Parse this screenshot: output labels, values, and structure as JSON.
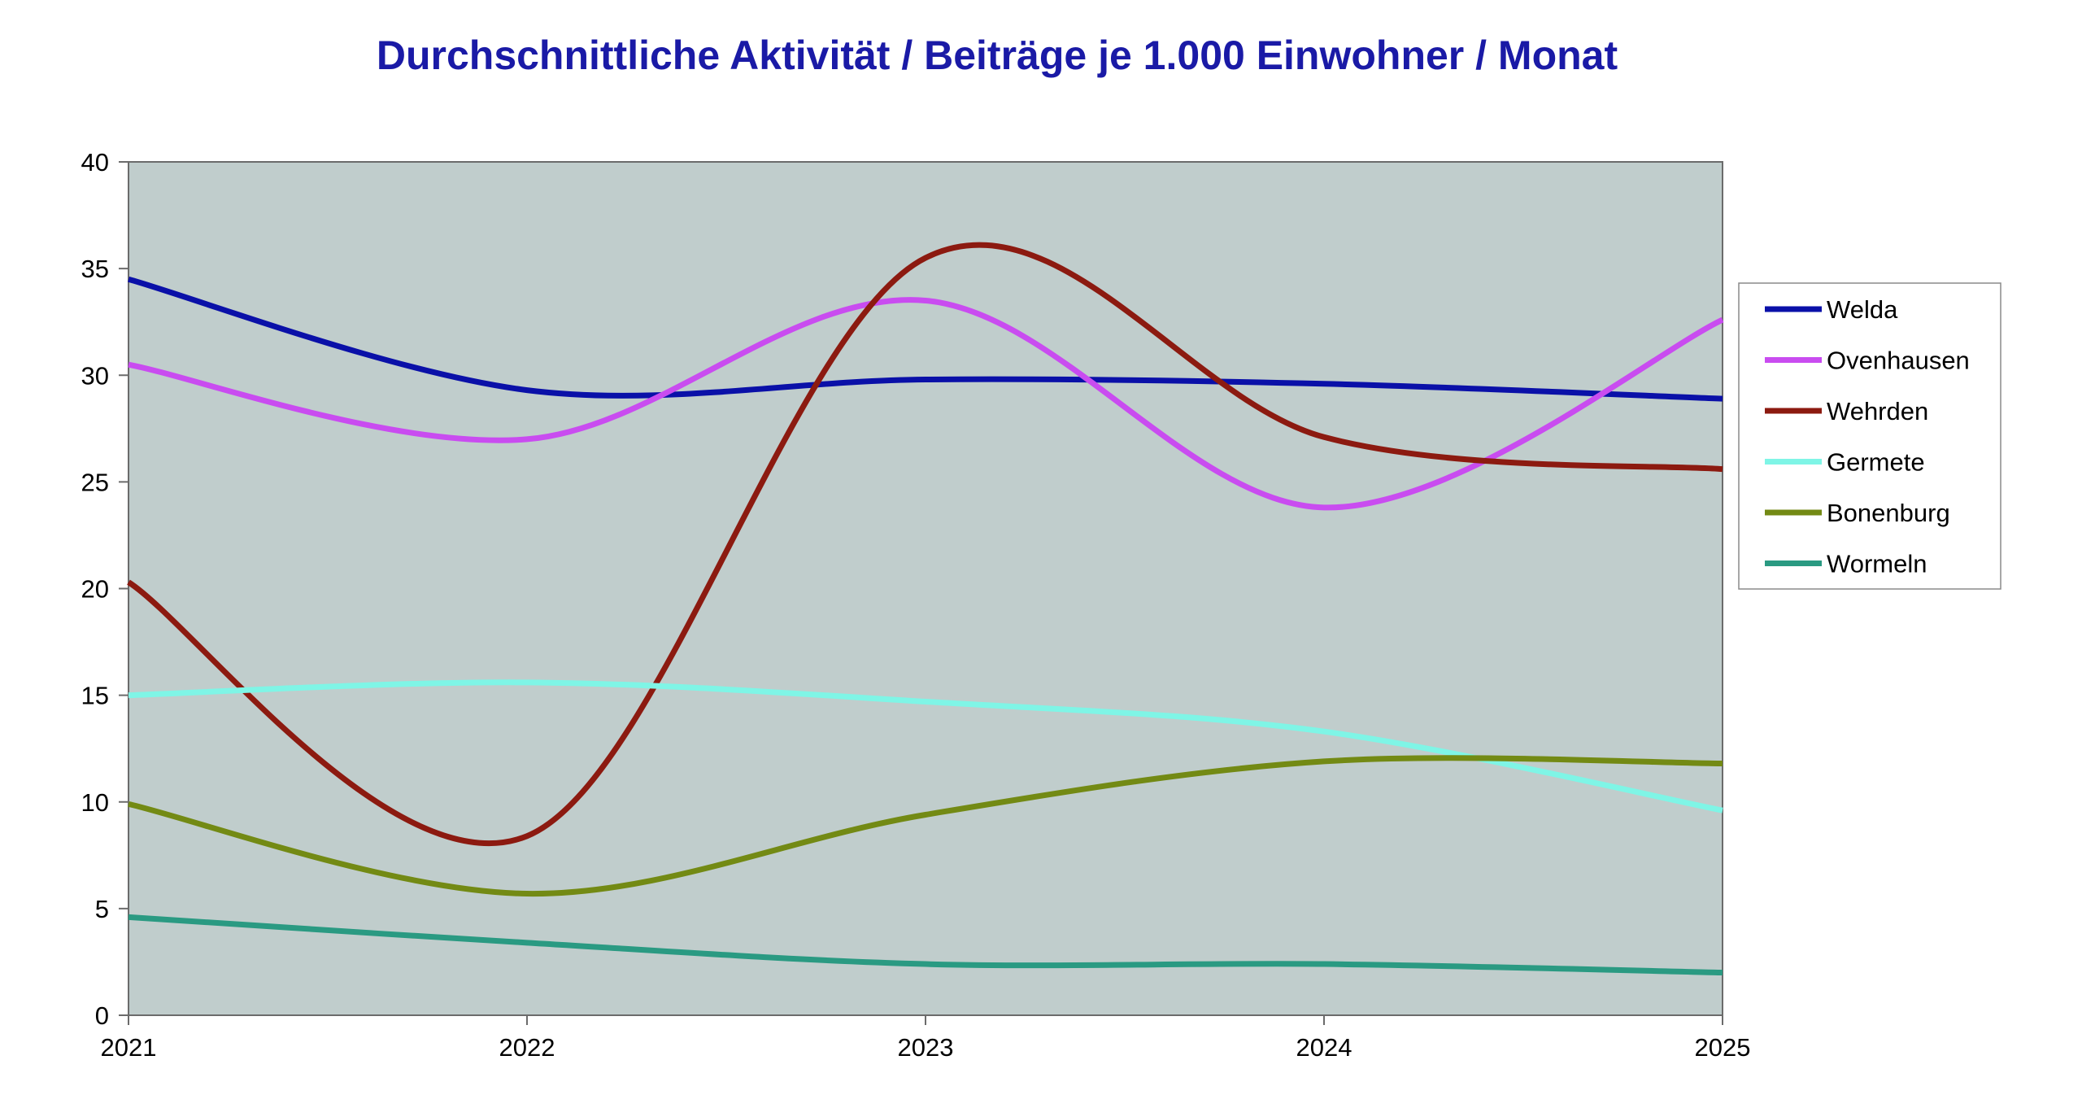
{
  "chart_data": {
    "type": "line",
    "title": "Durchschnittliche Aktivität / Beiträge je 1.000 Einwohner / Monat",
    "xlabel": "",
    "ylabel": "",
    "categories": [
      "2021",
      "2022",
      "2023",
      "2024",
      "2025"
    ],
    "ylim": [
      0,
      40
    ],
    "yticks": [
      0,
      5,
      10,
      15,
      20,
      25,
      30,
      35,
      40
    ],
    "grid": false,
    "legend_position": "right",
    "series": [
      {
        "name": "Welda",
        "color": "#0a10a8",
        "values": [
          34.5,
          29.3,
          29.8,
          29.6,
          28.9
        ]
      },
      {
        "name": "Ovenhausen",
        "color": "#c94cf0",
        "values": [
          30.5,
          27.0,
          33.5,
          23.8,
          32.6
        ]
      },
      {
        "name": "Wehrden",
        "color": "#8c1a10",
        "values": [
          20.3,
          8.4,
          35.5,
          27.1,
          25.6
        ]
      },
      {
        "name": "Germete",
        "color": "#7ff5e6",
        "values": [
          15.0,
          15.6,
          14.7,
          13.3,
          9.6
        ]
      },
      {
        "name": "Bonenburg",
        "color": "#738a14",
        "values": [
          9.9,
          5.7,
          9.4,
          11.9,
          11.8
        ]
      },
      {
        "name": "Wormeln",
        "color": "#2a9a82",
        "values": [
          4.6,
          3.4,
          2.4,
          2.4,
          2.0
        ]
      }
    ],
    "colors": {
      "title": "#1a1aa6",
      "plot_background": "#c0cdcc",
      "axis": "#6b6b6b"
    }
  }
}
